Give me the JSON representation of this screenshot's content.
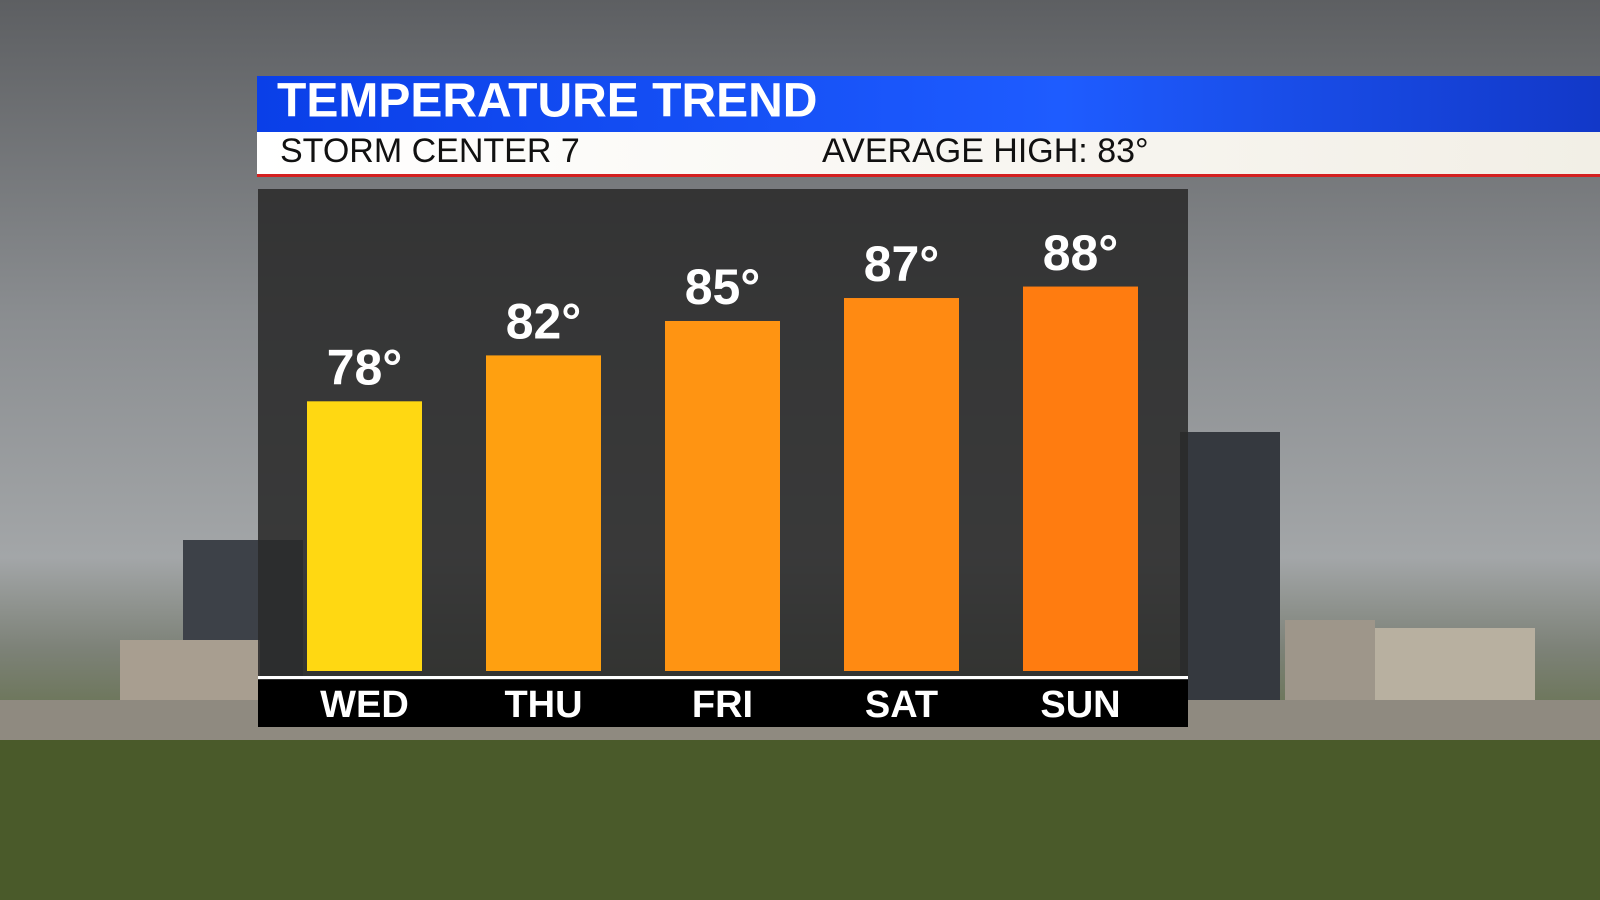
{
  "chart_data": {
    "type": "bar",
    "title": "TEMPERATURE TREND",
    "subtitle": "STORM CENTER 7",
    "annotation": "AVERAGE HIGH: 83°",
    "categories": [
      "WED",
      "THU",
      "FRI",
      "SAT",
      "SUN"
    ],
    "values": [
      78,
      82,
      85,
      87,
      88
    ],
    "value_labels": [
      "78°",
      "82°",
      "85°",
      "87°",
      "88°"
    ],
    "colors": [
      "#ffd812",
      "#ffa010",
      "#ff9412",
      "#ff8a12",
      "#ff7c10"
    ],
    "ylim": [
      54.5,
      96.5
    ]
  }
}
